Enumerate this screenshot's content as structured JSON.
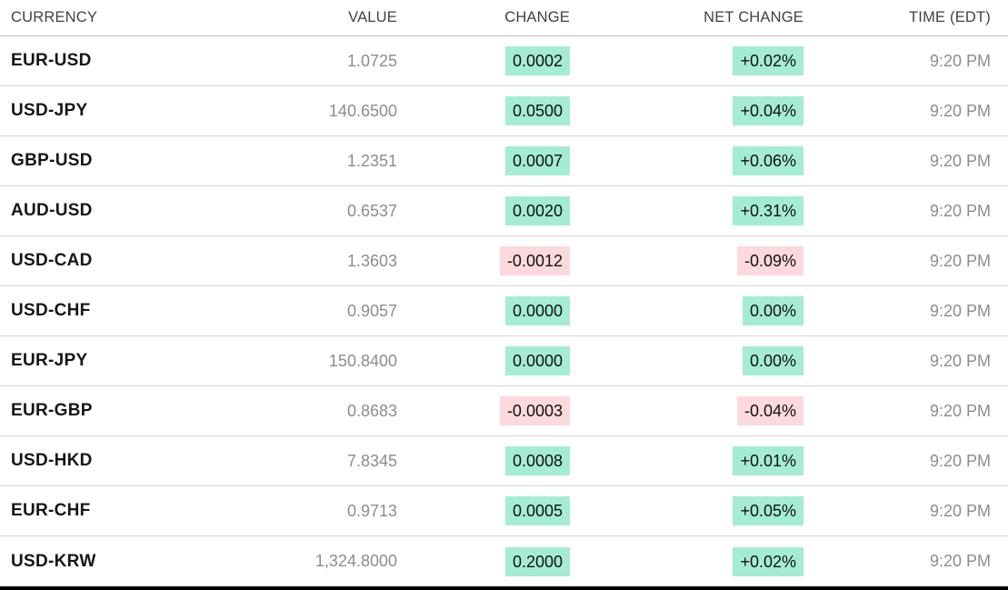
{
  "table": {
    "columns": [
      {
        "key": "currency",
        "label": "CURRENCY",
        "align": "left"
      },
      {
        "key": "value",
        "label": "VALUE",
        "align": "right"
      },
      {
        "key": "change",
        "label": "CHANGE",
        "align": "right"
      },
      {
        "key": "net_change",
        "label": "NET CHANGE",
        "align": "right"
      },
      {
        "key": "time",
        "label": "TIME (EDT)",
        "align": "right"
      }
    ],
    "rows": [
      {
        "currency": "EUR-USD",
        "value": "1.0725",
        "change": "0.0002",
        "net_change": "+0.02%",
        "direction": "up",
        "time": "9:20 PM"
      },
      {
        "currency": "USD-JPY",
        "value": "140.6500",
        "change": "0.0500",
        "net_change": "+0.04%",
        "direction": "up",
        "time": "9:20 PM"
      },
      {
        "currency": "GBP-USD",
        "value": "1.2351",
        "change": "0.0007",
        "net_change": "+0.06%",
        "direction": "up",
        "time": "9:20 PM"
      },
      {
        "currency": "AUD-USD",
        "value": "0.6537",
        "change": "0.0020",
        "net_change": "+0.31%",
        "direction": "up",
        "time": "9:20 PM"
      },
      {
        "currency": "USD-CAD",
        "value": "1.3603",
        "change": "-0.0012",
        "net_change": "-0.09%",
        "direction": "down",
        "time": "9:20 PM"
      },
      {
        "currency": "USD-CHF",
        "value": "0.9057",
        "change": "0.0000",
        "net_change": "0.00%",
        "direction": "up",
        "time": "9:20 PM"
      },
      {
        "currency": "EUR-JPY",
        "value": "150.8400",
        "change": "0.0000",
        "net_change": "0.00%",
        "direction": "up",
        "time": "9:20 PM"
      },
      {
        "currency": "EUR-GBP",
        "value": "0.8683",
        "change": "-0.0003",
        "net_change": "-0.04%",
        "direction": "down",
        "time": "9:20 PM"
      },
      {
        "currency": "USD-HKD",
        "value": "7.8345",
        "change": "0.0008",
        "net_change": "+0.01%",
        "direction": "up",
        "time": "9:20 PM"
      },
      {
        "currency": "EUR-CHF",
        "value": "0.9713",
        "change": "0.0005",
        "net_change": "+0.05%",
        "direction": "up",
        "time": "9:20 PM"
      },
      {
        "currency": "USD-KRW",
        "value": "1,324.8000",
        "change": "0.2000",
        "net_change": "+0.02%",
        "direction": "up",
        "time": "9:20 PM"
      }
    ]
  },
  "colors": {
    "positive_bg": "#a5ecd4",
    "negative_bg": "#fcd9dc",
    "accent_text": "#111111",
    "muted_text": "#8d8d8d",
    "currency_text": "#161616",
    "header_text": "#414141",
    "row_divider": "#d7d7d7",
    "header_divider": "#c0c0c0",
    "bottom_bar": "#000000"
  }
}
